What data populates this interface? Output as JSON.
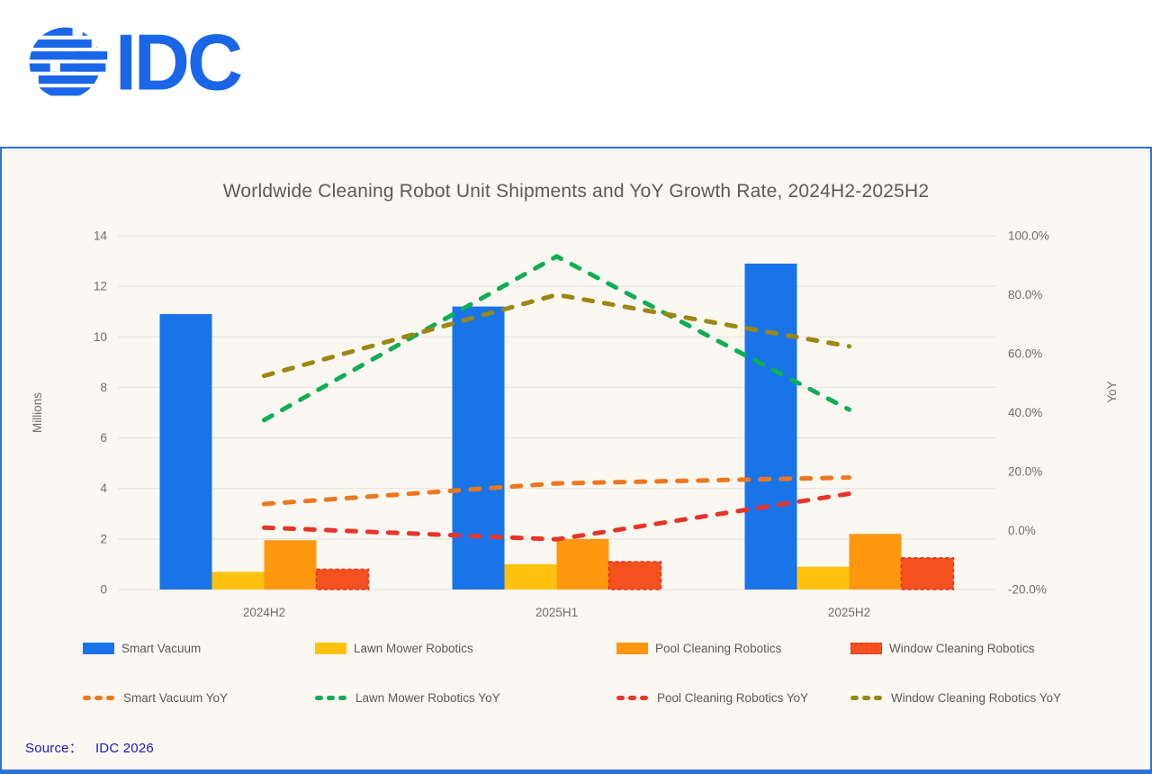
{
  "header": {
    "logo_text": "IDC",
    "logo_color": "#1A66E8"
  },
  "panel": {
    "background": "#FBF7F1",
    "border_color": "#3071D8"
  },
  "chart_data": {
    "type": "combo-bar-line",
    "title": "Worldwide Cleaning Robot Unit Shipments and YoY Growth Rate, 2024H2-2025H2",
    "categories": [
      "2024H2",
      "2025H1",
      "2025H2"
    ],
    "bar_series": [
      {
        "name": "Smart Vacuum",
        "color": "#1874E8",
        "values": [
          10.9,
          11.2,
          12.9
        ]
      },
      {
        "name": "Lawn Mower Robotics",
        "color": "#FFC20E",
        "values": [
          0.7,
          1.0,
          0.9
        ]
      },
      {
        "name": "Pool Cleaning Robotics",
        "color": "#FF980E",
        "values": [
          1.95,
          2.0,
          2.2
        ]
      },
      {
        "name": "Window Cleaning Robotics",
        "color": "#F4511E",
        "border_color": "#E02B20",
        "border_style": "dashed",
        "values": [
          0.8,
          1.1,
          1.25
        ]
      }
    ],
    "line_series": [
      {
        "name": "Smart Vacuum YoY",
        "color": "#F0761E",
        "values": [
          9,
          16,
          18
        ]
      },
      {
        "name": "Lawn Mower Robotics YoY",
        "color": "#0FAE56",
        "values": [
          37.5,
          93,
          41
        ]
      },
      {
        "name": "Pool Cleaning Robotics YoY",
        "color": "#E8352A",
        "values": [
          1,
          -3,
          12.5
        ]
      },
      {
        "name": "Window Cleaning Robotics YoY",
        "color": "#9C8712",
        "values": [
          52.5,
          80,
          62.5
        ]
      }
    ],
    "left_axis": {
      "label": "Millions",
      "min": 0,
      "max": 14,
      "step": 2,
      "ticks": [
        "0",
        "2",
        "4",
        "6",
        "8",
        "10",
        "12",
        "14"
      ]
    },
    "right_axis": {
      "label": "YoY",
      "min": -20,
      "max": 100,
      "step": 20,
      "ticks": [
        "-20.0%",
        "0.0%",
        "20.0%",
        "40.0%",
        "60.0%",
        "80.0%",
        "100.0%"
      ]
    },
    "grid": "horizontal",
    "gridline_color": "#E4E1DB",
    "axis_text_color": "#6E6E6E",
    "legend_position": "bottom"
  },
  "source": {
    "prefix": "Source：",
    "value": "IDC 2026",
    "color": "#1B1BC6"
  }
}
